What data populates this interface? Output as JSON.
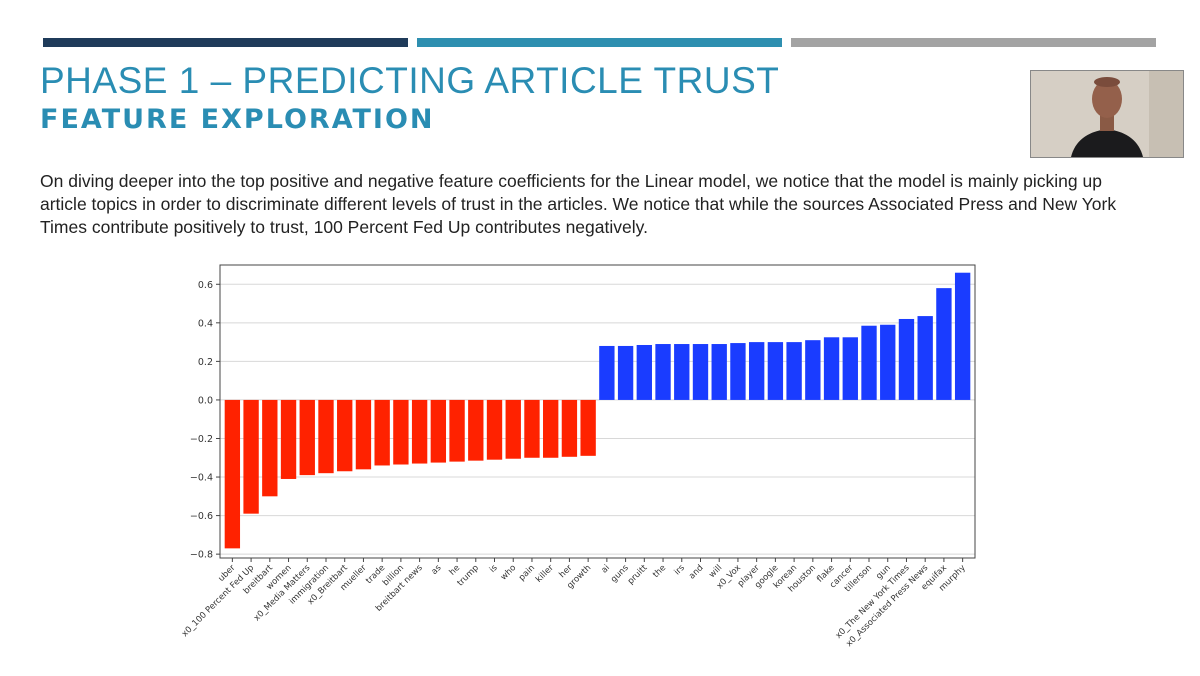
{
  "slide": {
    "title": "PHASE 1 – PREDICTING ARTICLE TRUST",
    "subtitle": "FEATURE EXPLORATION",
    "body": "On diving deeper into the top positive and negative feature coefficients for the Linear model, we notice that the model is mainly picking up article topics in order to discriminate different levels of trust in the articles. We notice that while the sources Associated Press and New York Times contribute positively to trust, 100 Percent Fed Up contributes negatively."
  },
  "colors": {
    "accent_dark": "#1f3b5a",
    "accent_teal": "#2e8fb0",
    "accent_gray": "#a3a3a3",
    "title": "#2a8db3",
    "negative_bar": "#ff2200",
    "positive_bar": "#1a3cff"
  },
  "webcam": {
    "icon": "presenter-video"
  },
  "chart_data": {
    "type": "bar",
    "title": "",
    "xlabel": "",
    "ylabel": "",
    "ylim": [
      -0.82,
      0.7
    ],
    "yticks": [
      -0.8,
      -0.6,
      -0.4,
      -0.2,
      0.0,
      0.2,
      0.4,
      0.6
    ],
    "ytick_labels": [
      "−0.8",
      "−0.6",
      "−0.4",
      "−0.2",
      "0.0",
      "0.2",
      "0.4",
      "0.6"
    ],
    "grid": true,
    "legend": "none",
    "categories": [
      "uber",
      "x0_100 Percent Fed Up",
      "breitbart",
      "women",
      "x0_Media Matters",
      "immigration",
      "x0_Breitbart",
      "mueller",
      "trade",
      "billion",
      "breitbart news",
      "as",
      "he",
      "trump",
      "is",
      "who",
      "pain",
      "killer",
      "her",
      "growth",
      "ai",
      "guns",
      "pruitt",
      "the",
      "irs",
      "and",
      "will",
      "x0_Vox",
      "player",
      "google",
      "korean",
      "houston",
      "flake",
      "cancer",
      "tillerson",
      "gun",
      "x0_The New York Times",
      "x0_Associated Press News",
      "equifax",
      "murphy"
    ],
    "values": [
      -0.77,
      -0.59,
      -0.5,
      -0.41,
      -0.39,
      -0.38,
      -0.37,
      -0.36,
      -0.34,
      -0.335,
      -0.33,
      -0.325,
      -0.32,
      -0.315,
      -0.31,
      -0.305,
      -0.3,
      -0.3,
      -0.295,
      -0.29,
      0.28,
      0.28,
      0.285,
      0.29,
      0.29,
      0.29,
      0.29,
      0.295,
      0.3,
      0.3,
      0.3,
      0.31,
      0.325,
      0.325,
      0.385,
      0.39,
      0.42,
      0.435,
      0.58,
      0.66
    ]
  }
}
